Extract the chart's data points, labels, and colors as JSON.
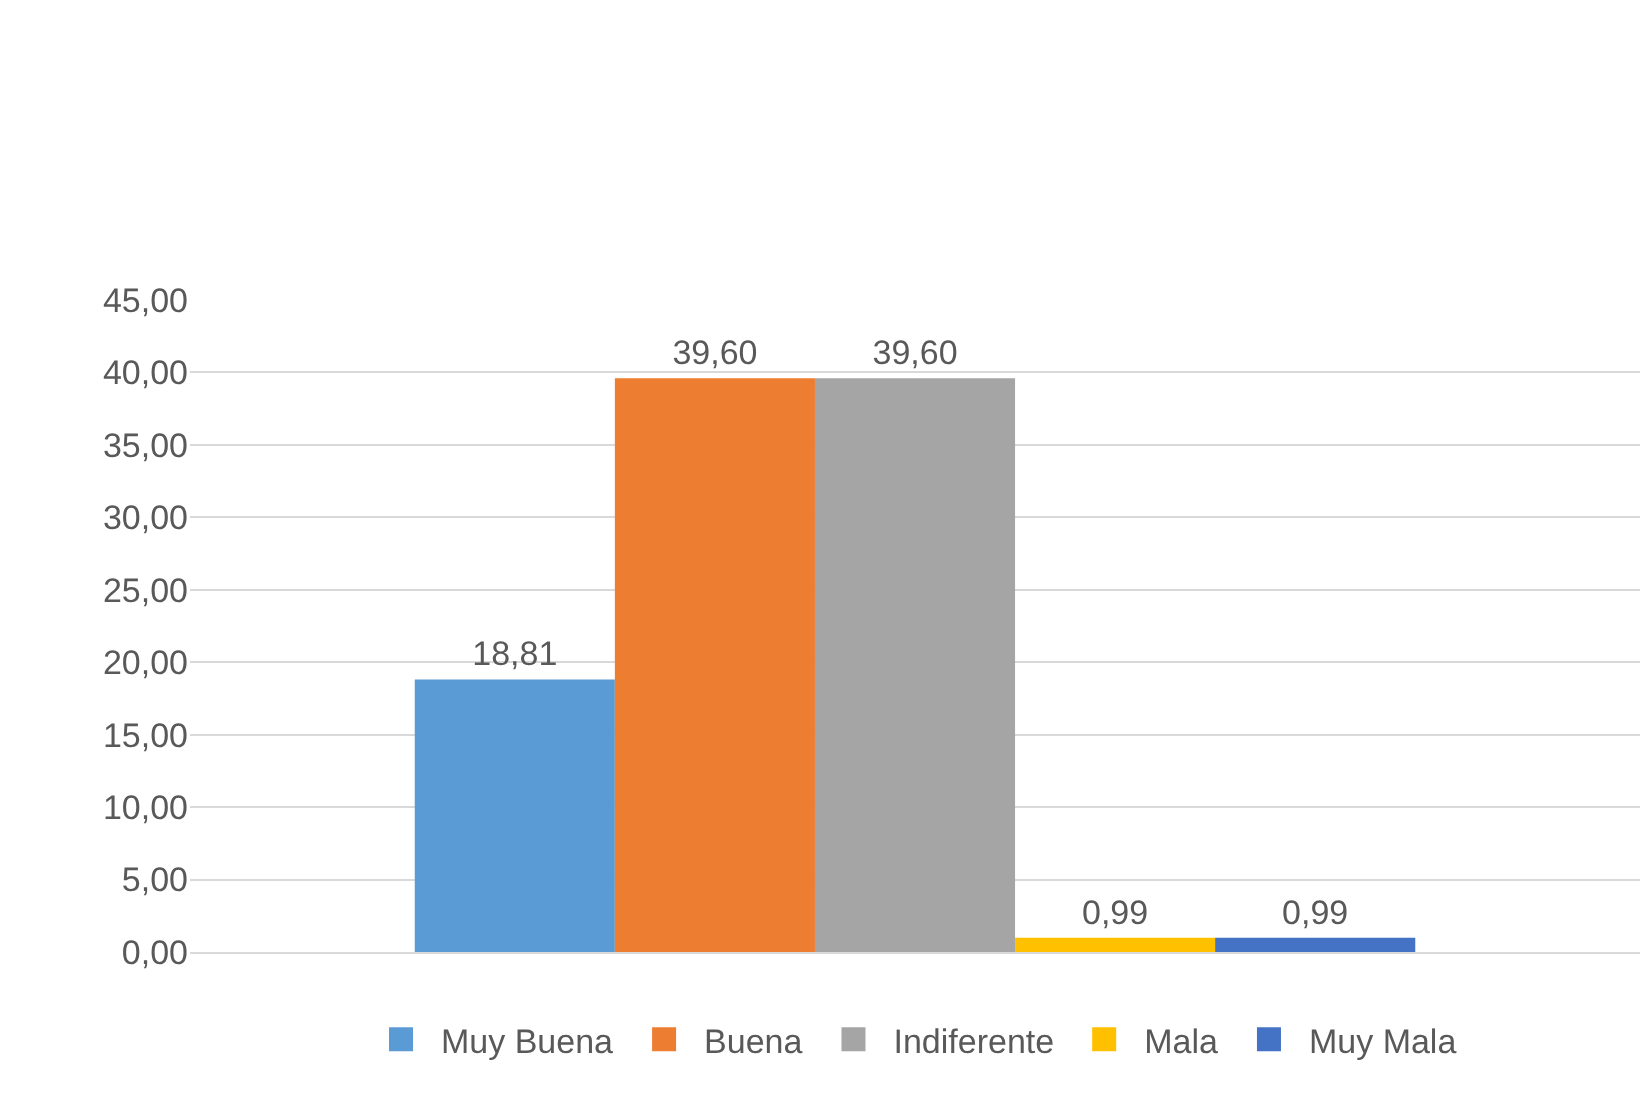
{
  "chart_data": {
    "type": "bar",
    "categories": [
      null
    ],
    "series": [
      {
        "name": "Muy Buena",
        "color": "#5b9bd5",
        "values": [
          18.81
        ],
        "value_labels": [
          "18,81"
        ]
      },
      {
        "name": "Buena",
        "color": "#ed7d31",
        "values": [
          39.6
        ],
        "value_labels": [
          "39,60"
        ]
      },
      {
        "name": "Indiferente",
        "color": "#a5a5a5",
        "values": [
          39.6
        ],
        "value_labels": [
          "39,60"
        ]
      },
      {
        "name": "Mala",
        "color": "#ffc000",
        "values": [
          0.99
        ],
        "value_labels": [
          "0,99"
        ]
      },
      {
        "name": "Muy Mala",
        "color": "#4472c4",
        "values": [
          0.99
        ],
        "value_labels": [
          "0,99"
        ]
      }
    ],
    "ylim": [
      0,
      45
    ],
    "yticks": [
      {
        "value": 0,
        "label": "0,00"
      },
      {
        "value": 5,
        "label": "5,00"
      },
      {
        "value": 10,
        "label": "10,00"
      },
      {
        "value": 15,
        "label": "15,00"
      },
      {
        "value": 20,
        "label": "20,00"
      },
      {
        "value": 25,
        "label": "25,00"
      },
      {
        "value": 30,
        "label": "30,00"
      },
      {
        "value": 35,
        "label": "35,00"
      },
      {
        "value": 40,
        "label": "40,00"
      },
      {
        "value": 45,
        "label": "45,00"
      }
    ],
    "grid": "y",
    "legend": "bottom",
    "tick_labels": "y"
  }
}
